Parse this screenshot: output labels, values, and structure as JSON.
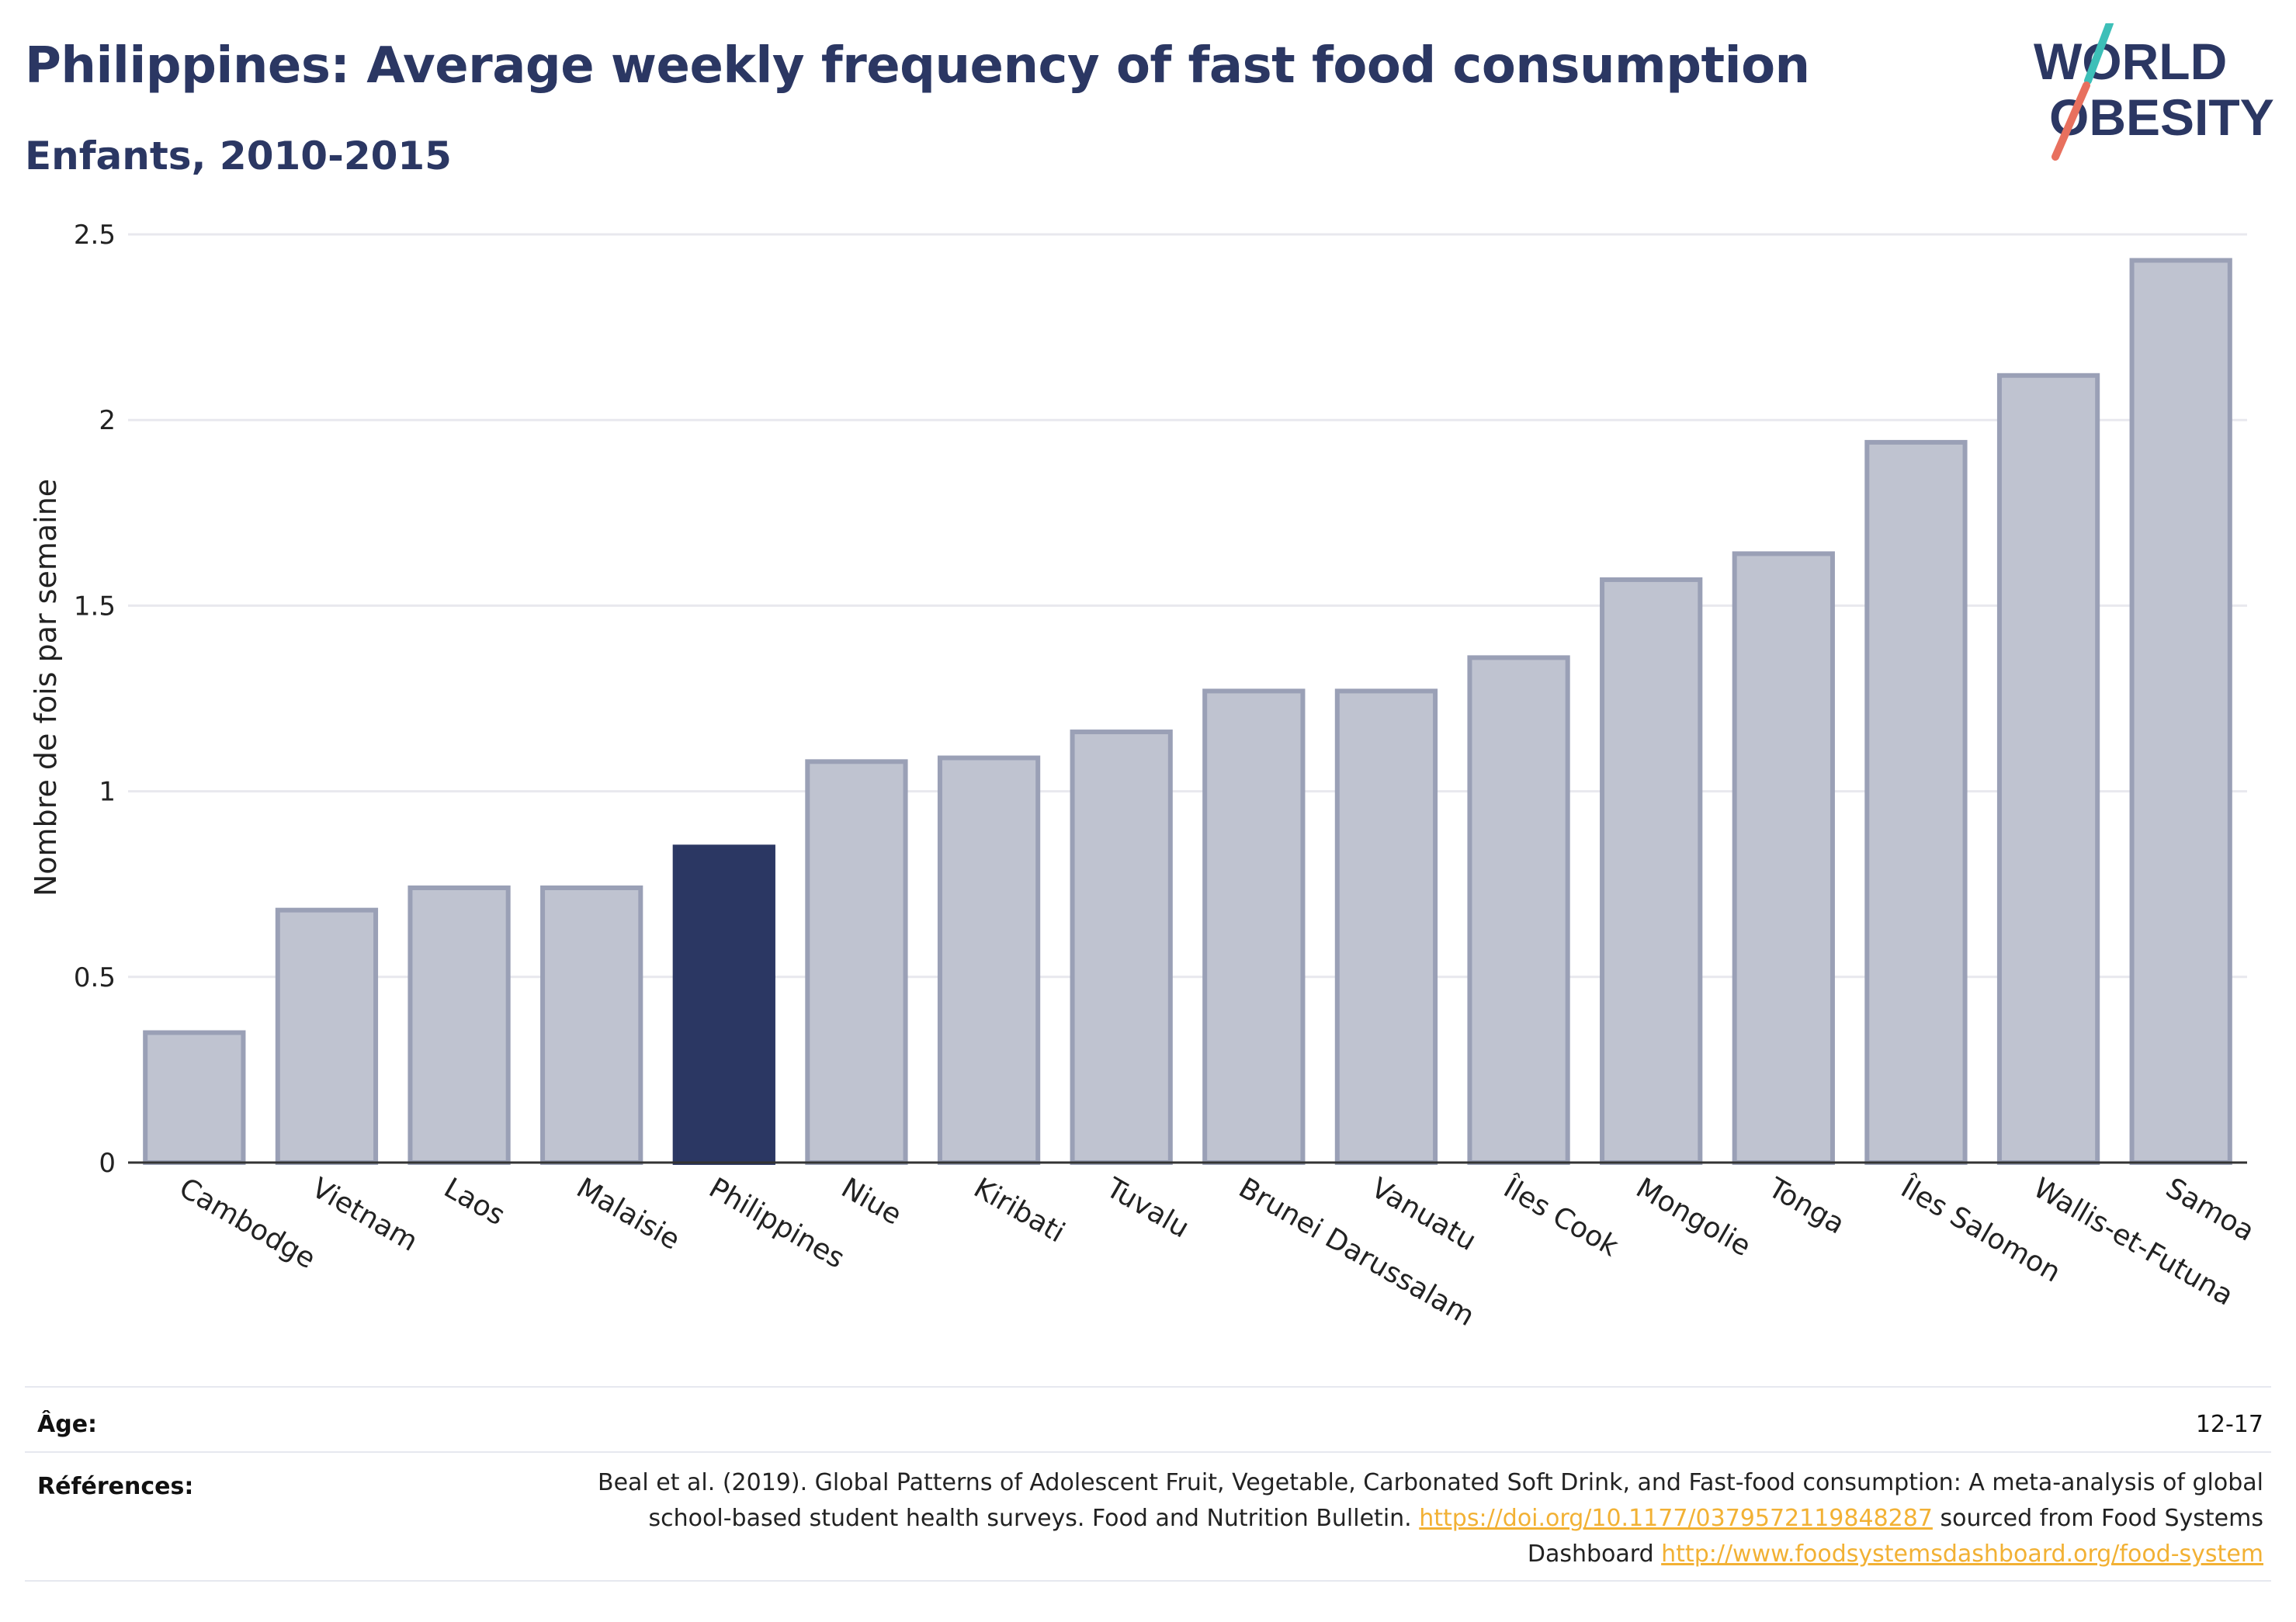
{
  "header": {
    "title": "Philippines: Average weekly frequency of fast food consumption",
    "subtitle": "Enfants, 2010-2015"
  },
  "logo": {
    "line1": "WORLD",
    "line2": "OBESITY",
    "colors": {
      "text": "#2b3763",
      "slash_teal": "#3dbfb8",
      "slash_coral": "#e8705e"
    }
  },
  "colors": {
    "highlight": "#2b3763",
    "bar_fill": "#bfc3d0",
    "bar_stroke": "#9aa0b6",
    "grid": "#e8e8ee",
    "link": "#f2b134"
  },
  "chart_data": {
    "type": "bar",
    "title": "Philippines: Average weekly frequency of fast food consumption",
    "subtitle": "Enfants, 2010-2015",
    "xlabel": "",
    "ylabel": "Nombre de fois par semaine",
    "ylim": [
      0,
      2.5
    ],
    "yticks": [
      0,
      0.5,
      1,
      1.5,
      2,
      2.5
    ],
    "ytick_labels": [
      "0",
      "0.5",
      "1",
      "1.5",
      "2",
      "2.5"
    ],
    "grid": true,
    "highlight": "Philippines",
    "categories": [
      "Cambodge",
      "Vietnam",
      "Laos",
      "Malaisie",
      "Philippines",
      "Niue",
      "Kiribati",
      "Tuvalu",
      "Brunei Darussalam",
      "Vanuatu",
      "Îles Cook",
      "Mongolie",
      "Tonga",
      "Îles Salomon",
      "Wallis-et-Futuna",
      "Samoa"
    ],
    "values": [
      0.35,
      0.68,
      0.74,
      0.74,
      0.85,
      1.08,
      1.09,
      1.16,
      1.27,
      1.27,
      1.36,
      1.57,
      1.64,
      1.94,
      2.12,
      2.43
    ]
  },
  "footer": {
    "age_label": "Âge:",
    "age_value": "12-17",
    "ref_label": "Références:",
    "ref_text1": "Beal et al. (2019). Global Patterns of Adolescent Fruit, Vegetable, Carbonated Soft Drink, and Fast-food consumption: A meta-analysis of global school-based student health surveys. Food and Nutrition Bulletin. ",
    "ref_link1": "https://doi.org/10.1177/0379572119848287",
    "ref_text2": " sourced from Food Systems Dashboard ",
    "ref_link2": "http://www.foodsystemsdashboard.org/food-system"
  }
}
